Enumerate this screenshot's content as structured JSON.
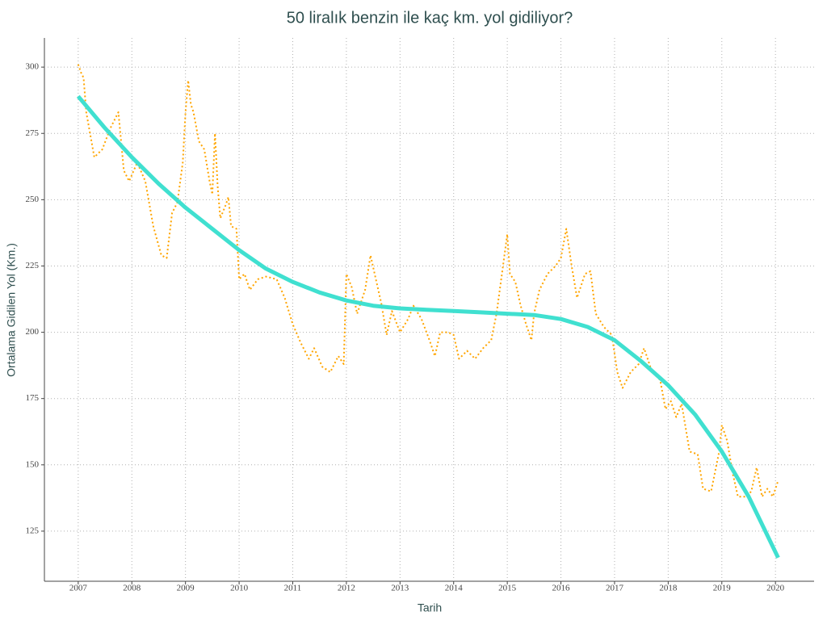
{
  "chart_data": {
    "type": "line",
    "title": "50 liralık benzin ile kaç km. yol gidiliyor?",
    "x_label": "Tarih",
    "y_label": "Ortalama Gidilen Yol (Km.)",
    "xlim": [
      2006.37,
      2020.72
    ],
    "ylim": [
      106.1,
      311
    ],
    "xticks": [
      2007,
      2008,
      2009,
      2010,
      2011,
      2012,
      2013,
      2014,
      2015,
      2016,
      2017,
      2018,
      2019,
      2020
    ],
    "yticks": [
      125,
      150,
      175,
      200,
      225,
      250,
      275,
      300
    ],
    "grid": true,
    "series": [
      {
        "color": "#ffa500",
        "style": "dotted",
        "x": [
          2007.0,
          2007.05,
          2007.1,
          2007.15,
          2007.3,
          2007.45,
          2007.6,
          2007.75,
          2007.85,
          2007.95,
          2008.1,
          2008.25,
          2008.4,
          2008.55,
          2008.65,
          2008.75,
          2008.85,
          2008.95,
          2009.0,
          2009.05,
          2009.1,
          2009.15,
          2009.25,
          2009.35,
          2009.45,
          2009.5,
          2009.55,
          2009.6,
          2009.65,
          2009.75,
          2009.8,
          2009.85,
          2009.95,
          2010.0,
          2010.1,
          2010.2,
          2010.35,
          2010.5,
          2010.7,
          2010.85,
          2011.0,
          2011.15,
          2011.3,
          2011.4,
          2011.55,
          2011.7,
          2011.85,
          2011.95,
          2012.0,
          2012.1,
          2012.2,
          2012.35,
          2012.45,
          2012.55,
          2012.65,
          2012.75,
          2012.85,
          2013.0,
          2013.15,
          2013.25,
          2013.4,
          2013.55,
          2013.65,
          2013.75,
          2013.9,
          2014.0,
          2014.1,
          2014.25,
          2014.4,
          2014.55,
          2014.7,
          2014.8,
          2014.9,
          2015.0,
          2015.05,
          2015.15,
          2015.25,
          2015.35,
          2015.45,
          2015.5,
          2015.6,
          2015.75,
          2015.9,
          2016.0,
          2016.1,
          2016.2,
          2016.3,
          2016.45,
          2016.55,
          2016.65,
          2016.8,
          2016.95,
          2017.05,
          2017.15,
          2017.3,
          2017.45,
          2017.55,
          2017.7,
          2017.85,
          2017.95,
          2018.05,
          2018.15,
          2018.25,
          2018.4,
          2018.55,
          2018.65,
          2018.8,
          2018.95,
          2019.0,
          2019.1,
          2019.2,
          2019.3,
          2019.45,
          2019.55,
          2019.65,
          2019.75,
          2019.85,
          2019.95,
          2020.05
        ],
        "values": [
          301,
          298,
          296,
          283,
          266,
          269,
          277,
          283,
          261,
          257,
          264,
          257,
          240,
          229,
          228,
          245,
          249,
          264,
          283,
          295,
          286,
          283,
          272,
          269,
          257,
          252,
          275,
          255,
          243,
          248,
          251,
          240,
          239,
          220,
          222,
          216,
          220,
          221,
          220,
          213,
          203,
          196,
          190,
          194,
          187,
          185,
          191,
          188,
          222,
          217,
          207,
          216,
          229,
          220,
          211,
          199,
          208,
          200,
          205,
          210,
          205,
          197,
          191,
          200,
          200,
          199,
          190,
          193,
          190,
          194,
          197,
          207,
          222,
          237,
          222,
          219,
          210,
          203,
          197,
          207,
          216,
          222,
          225,
          228,
          239,
          225,
          213,
          222,
          223,
          207,
          202,
          199,
          185,
          179,
          185,
          188,
          194,
          185,
          182,
          171,
          174,
          168,
          173,
          155,
          154,
          141,
          140,
          155,
          165,
          159,
          147,
          138,
          138,
          140,
          149,
          138,
          141,
          138,
          144
        ]
      },
      {
        "color": "#40e0d0",
        "style": "solid",
        "x": [
          2007,
          2007.5,
          2008,
          2008.5,
          2009,
          2009.5,
          2010,
          2010.5,
          2011,
          2011.5,
          2012,
          2012.5,
          2013,
          2013.5,
          2014,
          2014.5,
          2015,
          2015.5,
          2016,
          2016.5,
          2017,
          2017.5,
          2018,
          2018.5,
          2019,
          2019.5,
          2020.05
        ],
        "values": [
          289,
          277,
          266,
          256,
          247,
          239,
          231,
          224,
          219,
          215,
          212,
          210,
          209,
          208.5,
          208,
          207.5,
          207,
          206.5,
          205,
          202,
          197,
          189,
          180,
          169,
          155,
          138,
          115
        ]
      }
    ]
  }
}
